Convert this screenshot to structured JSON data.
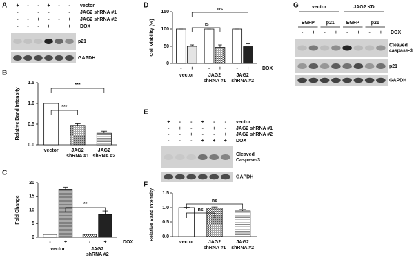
{
  "blots": [
    {
      "panel": "A",
      "rows": [
        {
          "name": "vector",
          "signs": [
            "+",
            "-",
            "-",
            "+",
            "-",
            "-"
          ]
        },
        {
          "name": "JAG2 shRNA #1",
          "signs": [
            "-",
            "+",
            "-",
            "-",
            "+",
            "-"
          ]
        },
        {
          "name": "JAG2 shRNA #2",
          "signs": [
            "-",
            "-",
            "+",
            "-",
            "-",
            "+"
          ]
        },
        {
          "name": "DOX",
          "signs": [
            "-",
            "-",
            "-",
            "+",
            "+",
            "+"
          ]
        }
      ],
      "bands": [
        [
          "p21"
        ],
        [
          "GAPDH"
        ]
      ]
    },
    {
      "panel": "E",
      "rows": [
        {
          "name": "vector",
          "signs": [
            "+",
            "-",
            "-",
            "+",
            "-",
            "-"
          ]
        },
        {
          "name": "JAG2 shRNA #1",
          "signs": [
            "-",
            "+",
            "-",
            "-",
            "+",
            "-"
          ]
        },
        {
          "name": "JAG2 shRNA #2",
          "signs": [
            "-",
            "-",
            "+",
            "-",
            "-",
            "+"
          ]
        },
        {
          "name": "DOX",
          "signs": [
            "-",
            "-",
            "-",
            "+",
            "+",
            "+"
          ]
        }
      ],
      "bands": [
        [
          "Cleaved",
          "Caspase-3"
        ],
        [
          "GAPDH"
        ]
      ]
    },
    {
      "panel": "G",
      "groups": [
        "vector",
        "JAG2 KD"
      ],
      "subgroups": [
        "EGFP",
        "p21",
        "EGFP",
        "p21"
      ],
      "rows": [
        {
          "name": "DOX",
          "signs": [
            "-",
            "+",
            "-",
            "+",
            "-",
            "+",
            "-",
            "+"
          ]
        }
      ],
      "bands": [
        [
          "Cleaved",
          "caspase-3"
        ],
        [
          "p21"
        ],
        [
          "GAPDH"
        ]
      ]
    }
  ],
  "chart_data": [
    {
      "panel": "B",
      "type": "bar",
      "ylabel": "Relative Band Intensity",
      "categories": [
        "vector",
        "JAG2 shRNA #1",
        "JAG2 shRNA #2"
      ],
      "values": [
        1.0,
        0.47,
        0.28
      ],
      "errors": [
        0.01,
        0.04,
        0.05
      ],
      "fills": [
        "#ffffff",
        "checker",
        "lines"
      ],
      "ylim": [
        0,
        1.5
      ],
      "yticks": [
        {
          "value": 0,
          "label": "0.0"
        },
        0.5,
        {
          "value": 1,
          "label": "1.0"
        },
        1.5
      ],
      "significance": [
        "***",
        "***"
      ]
    },
    {
      "panel": "C",
      "type": "bar",
      "ylabel": "Fold Change",
      "groups": [
        "vector",
        "JAG2 shRNA #2"
      ],
      "signs": [
        "-",
        "+",
        "-",
        "+"
      ],
      "sign_label": "DOX",
      "values": [
        1.0,
        17.6,
        1.0,
        8.3
      ],
      "errors": [
        0.1,
        0.8,
        0.1,
        1.3
      ],
      "fills": [
        "#ffffff",
        "graylines",
        "checker",
        "#222222"
      ],
      "ylim": [
        0,
        20
      ],
      "yticks": [
        0,
        5,
        10,
        15,
        20
      ],
      "significance": [
        "**"
      ]
    },
    {
      "panel": "D",
      "type": "bar",
      "ylabel": "Cell Viability (%)",
      "groups": [
        "vector",
        "JAG2 shRNA #1",
        "JAG2 shRNA #2"
      ],
      "signs": [
        "-",
        "+",
        "-",
        "+",
        "-",
        "+"
      ],
      "sign_label": "DOX",
      "values": [
        100,
        50,
        100,
        47,
        100,
        49
      ],
      "errors": [
        0,
        4,
        0,
        7,
        0,
        8
      ],
      "fills": [
        "#ffffff",
        "#e4e4e4",
        "#ffffff",
        "checker",
        "#ffffff",
        "#222222"
      ],
      "ylim": [
        0,
        150
      ],
      "yticks": [
        0,
        50,
        100,
        150
      ],
      "significance": [
        "ns",
        "ns"
      ]
    },
    {
      "panel": "F",
      "type": "bar",
      "ylabel": "Relative Band Intensity",
      "categories": [
        "vector",
        "JAG2 shRNA #1",
        "JAG2 shRNA #2"
      ],
      "values": [
        1.0,
        0.98,
        0.88
      ],
      "errors": [
        0.01,
        0.04,
        0.05
      ],
      "fills": [
        "#ffffff",
        "checker",
        "lines"
      ],
      "ylim": [
        0,
        1.5
      ],
      "yticks": [
        {
          "value": 0,
          "label": "0.0"
        },
        0.5,
        {
          "value": 1,
          "label": "1.0"
        },
        1.5
      ],
      "significance": [
        "ns",
        "ns"
      ]
    }
  ]
}
